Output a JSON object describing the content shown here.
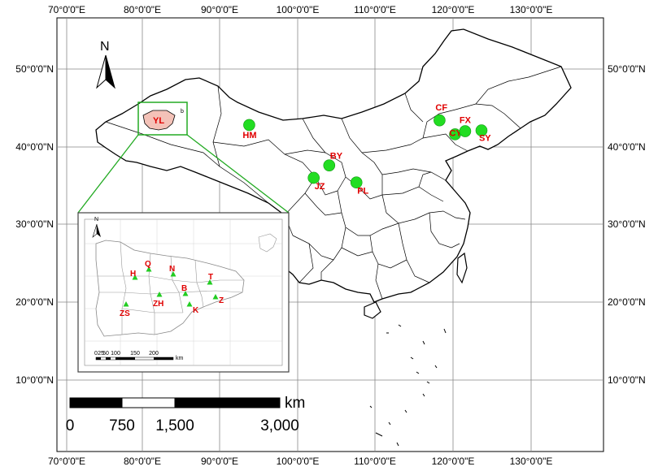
{
  "lon_labels": [
    "70°0'0\"E",
    "80°0'0\"E",
    "90°0'0\"E",
    "100°0'0\"E",
    "110°0'0\"E",
    "120°0'0\"E",
    "130°0'0\"E"
  ],
  "lat_labels": [
    "50°0'0\"N",
    "40°0'0\"N",
    "30°0'0\"N",
    "20°0'0\"N",
    "10°0'0\"N"
  ],
  "north_label": "N",
  "sites": [
    {
      "code": "HM",
      "lon": 93.5,
      "lat": 42.8
    },
    {
      "code": "CF",
      "lon": 118.0,
      "lat": 43.4
    },
    {
      "code": "CY",
      "lon": 120.0,
      "lat": 41.6
    },
    {
      "code": "FX",
      "lon": 121.3,
      "lat": 42.0
    },
    {
      "code": "SY",
      "lon": 123.4,
      "lat": 42.1
    },
    {
      "code": "BY",
      "lon": 103.8,
      "lat": 37.6
    },
    {
      "code": "JZ",
      "lon": 101.8,
      "lat": 36.0
    },
    {
      "code": "PL",
      "lon": 107.3,
      "lat": 35.4
    }
  ],
  "study_region": {
    "code": "YL",
    "small_label": "b"
  },
  "inset": {
    "north_label": "N",
    "sites": [
      {
        "code": "H"
      },
      {
        "code": "Q"
      },
      {
        "code": "N"
      },
      {
        "code": "T"
      },
      {
        "code": "B"
      },
      {
        "code": "Z"
      },
      {
        "code": "ZH"
      },
      {
        "code": "K"
      },
      {
        "code": "ZS"
      }
    ],
    "scale_numbers": [
      "0",
      "25",
      "50",
      "100",
      "150",
      "200"
    ],
    "scale_unit": "km"
  },
  "scale_bar": {
    "unit": "km",
    "ticks": [
      "0",
      "750",
      "1,500",
      "3,000"
    ]
  },
  "colors": {
    "site_fill": "#22dd22",
    "site_label": "#e00000",
    "highlight_box": "#22aa22",
    "region_fill": "#f4c2b8",
    "inset_site": "#22cc22"
  }
}
